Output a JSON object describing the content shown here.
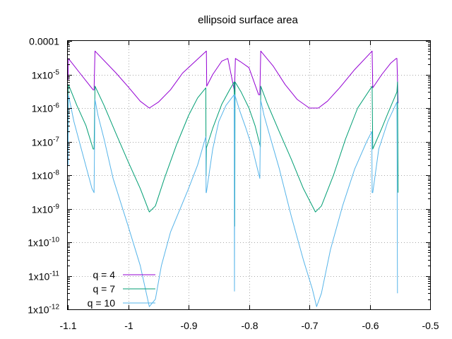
{
  "chart_data": {
    "type": "line",
    "title": "ellipsoid surface area",
    "xlabel": "",
    "ylabel": "",
    "xlim": [
      -1.1,
      -0.5
    ],
    "ylim": [
      1e-12,
      0.0001
    ],
    "yscale": "log",
    "grid": true,
    "legend_position": "bottom-left",
    "x_ticks": [
      {
        "value": -1.1,
        "label": "-1.1"
      },
      {
        "value": -1.0,
        "label": "-1"
      },
      {
        "value": -0.9,
        "label": "-0.9"
      },
      {
        "value": -0.8,
        "label": "-0.8"
      },
      {
        "value": -0.7,
        "label": "-0.7"
      },
      {
        "value": -0.6,
        "label": "-0.6"
      },
      {
        "value": -0.5,
        "label": "-0.5"
      }
    ],
    "y_ticks": [
      {
        "value": 0.0001,
        "base": "0.0001",
        "exp": ""
      },
      {
        "value": 1e-05,
        "base": "1x10",
        "exp": "-5"
      },
      {
        "value": 1e-06,
        "base": "1x10",
        "exp": "-6"
      },
      {
        "value": 1e-07,
        "base": "1x10",
        "exp": "-7"
      },
      {
        "value": 1e-08,
        "base": "1x10",
        "exp": "-8"
      },
      {
        "value": 1e-09,
        "base": "1x10",
        "exp": "-9"
      },
      {
        "value": 1e-10,
        "base": "1x10",
        "exp": "-10"
      },
      {
        "value": 1e-11,
        "base": "1x10",
        "exp": "-11"
      },
      {
        "value": 1e-12,
        "base": "1x10",
        "exp": "-12"
      }
    ],
    "series": [
      {
        "name": "q = 4",
        "color": "#9400d3",
        "points": [
          [
            -1.0995,
            7e-06
          ],
          [
            -1.099,
            3e-05
          ],
          [
            -1.08,
            1.1e-05
          ],
          [
            -1.058,
            3.5e-06
          ],
          [
            -1.0565,
            3.5e-06
          ],
          [
            -1.055,
            5e-05
          ],
          [
            -1.02,
            1.1e-05
          ],
          [
            -1.0,
            4.3e-06
          ],
          [
            -0.98,
            1.6e-06
          ],
          [
            -0.965,
            1e-06
          ],
          [
            -0.95,
            1.5e-06
          ],
          [
            -0.93,
            3.5e-06
          ],
          [
            -0.91,
            1.1e-05
          ],
          [
            -0.8705,
            5e-05
          ],
          [
            -0.87,
            4.5e-06
          ],
          [
            -0.86,
            1e-05
          ],
          [
            -0.845,
            2.5e-05
          ],
          [
            -0.835,
            3e-05
          ],
          [
            -0.8245,
            3.5e-06
          ],
          [
            -0.824,
            3e-06
          ],
          [
            -0.8225,
            3e-05
          ],
          [
            -0.814,
            2.4e-05
          ],
          [
            -0.8,
            1.6e-05
          ],
          [
            -0.784,
            2.5e-06
          ],
          [
            -0.782,
            2.5e-06
          ],
          [
            -0.7805,
            5e-05
          ],
          [
            -0.76,
            1.8e-05
          ],
          [
            -0.74,
            5e-06
          ],
          [
            -0.72,
            1.8e-06
          ],
          [
            -0.7,
            1e-06
          ],
          [
            -0.685,
            1e-06
          ],
          [
            -0.67,
            1.6e-06
          ],
          [
            -0.65,
            4e-06
          ],
          [
            -0.625,
            1.4e-05
          ],
          [
            -0.596,
            5e-05
          ],
          [
            -0.595,
            4e-06
          ],
          [
            -0.58,
            1e-05
          ],
          [
            -0.565,
            2.2e-05
          ],
          [
            -0.556,
            3e-05
          ],
          [
            -0.555,
            3e-05
          ],
          [
            -0.553,
            1.4e-06
          ]
        ]
      },
      {
        "name": "q = 7",
        "color": "#009e73",
        "points": [
          [
            -1.0995,
            7e-08
          ],
          [
            -1.099,
            5e-06
          ],
          [
            -1.085,
            1.2e-06
          ],
          [
            -1.07,
            3e-07
          ],
          [
            -1.058,
            6e-08
          ],
          [
            -1.0565,
            6e-08
          ],
          [
            -1.055,
            4.5e-06
          ],
          [
            -1.04,
            1.2e-06
          ],
          [
            -1.02,
            1.7e-07
          ],
          [
            -1.0,
            2.5e-08
          ],
          [
            -0.98,
            4e-09
          ],
          [
            -0.965,
            8e-10
          ],
          [
            -0.955,
            1.2e-09
          ],
          [
            -0.94,
            8e-09
          ],
          [
            -0.92,
            8e-08
          ],
          [
            -0.9,
            6e-07
          ],
          [
            -0.885,
            2e-06
          ],
          [
            -0.8715,
            4e-06
          ],
          [
            -0.871,
            1e-08
          ],
          [
            -0.8705,
            6.5e-08
          ],
          [
            -0.86,
            2.5e-07
          ],
          [
            -0.845,
            1.3e-06
          ],
          [
            -0.832,
            3.5e-06
          ],
          [
            -0.8245,
            6e-06
          ],
          [
            -0.824,
            8e-08
          ],
          [
            -0.8235,
            3e-10
          ],
          [
            -0.823,
            6e-06
          ],
          [
            -0.813,
            3e-06
          ],
          [
            -0.8,
            1e-06
          ],
          [
            -0.79,
            3e-07
          ],
          [
            -0.781,
            7e-08
          ],
          [
            -0.7805,
            4.5e-06
          ],
          [
            -0.77,
            1.4e-06
          ],
          [
            -0.75,
            2e-07
          ],
          [
            -0.73,
            3e-08
          ],
          [
            -0.71,
            4e-09
          ],
          [
            -0.69,
            8e-10
          ],
          [
            -0.68,
            1.2e-09
          ],
          [
            -0.66,
            1e-08
          ],
          [
            -0.64,
            1.2e-07
          ],
          [
            -0.62,
            1e-06
          ],
          [
            -0.596,
            4.5e-06
          ],
          [
            -0.595,
            6e-08
          ],
          [
            -0.58,
            2.5e-07
          ],
          [
            -0.57,
            7e-07
          ],
          [
            -0.555,
            3e-06
          ],
          [
            -0.554,
            6e-06
          ],
          [
            -0.553,
            3e-09
          ]
        ]
      },
      {
        "name": "q = 10",
        "color": "#56b4e9",
        "points": [
          [
            -1.0995,
            2e-08
          ],
          [
            -1.099,
            2.5e-06
          ],
          [
            -1.09,
            4e-07
          ],
          [
            -1.075,
            4e-08
          ],
          [
            -1.06,
            4e-09
          ],
          [
            -1.0565,
            3e-09
          ],
          [
            -1.055,
            1.8e-06
          ],
          [
            -1.05,
            6e-07
          ],
          [
            -1.04,
            1.2e-07
          ],
          [
            -1.025,
            8e-09
          ],
          [
            -1.0,
            3e-10
          ],
          [
            -0.98,
            2e-11
          ],
          [
            -0.965,
            1.2e-12
          ],
          [
            -0.955,
            2e-12
          ],
          [
            -0.945,
            2e-11
          ],
          [
            -0.93,
            2e-10
          ],
          [
            -0.9,
            4e-09
          ],
          [
            -0.885,
            2e-08
          ],
          [
            -0.8715,
            1.4e-07
          ],
          [
            -0.871,
            3e-09
          ],
          [
            -0.8705,
            3e-09
          ],
          [
            -0.86,
            6e-08
          ],
          [
            -0.85,
            4e-07
          ],
          [
            -0.838,
            1.2e-06
          ],
          [
            -0.8245,
            2.5e-06
          ],
          [
            -0.824,
            3.5e-12
          ],
          [
            -0.8235,
            2.5e-06
          ],
          [
            -0.815,
            8e-07
          ],
          [
            -0.805,
            2.5e-07
          ],
          [
            -0.795,
            7e-08
          ],
          [
            -0.782,
            8e-09
          ],
          [
            -0.7805,
            1.7e-06
          ],
          [
            -0.775,
            6e-07
          ],
          [
            -0.765,
            1.4e-07
          ],
          [
            -0.75,
            1.6e-08
          ],
          [
            -0.73,
            6e-10
          ],
          [
            -0.71,
            3e-11
          ],
          [
            -0.695,
            4e-12
          ],
          [
            -0.688,
            1.2e-12
          ],
          [
            -0.68,
            3e-12
          ],
          [
            -0.665,
            6e-11
          ],
          [
            -0.645,
            1.2e-09
          ],
          [
            -0.625,
            1.5e-08
          ],
          [
            -0.605,
            1e-07
          ],
          [
            -0.5965,
            2e-07
          ],
          [
            -0.596,
            3e-09
          ],
          [
            -0.595,
            3e-09
          ],
          [
            -0.585,
            6e-08
          ],
          [
            -0.57,
            4e-07
          ],
          [
            -0.555,
            1.5e-06
          ],
          [
            -0.554,
            3e-12
          ]
        ]
      }
    ]
  }
}
